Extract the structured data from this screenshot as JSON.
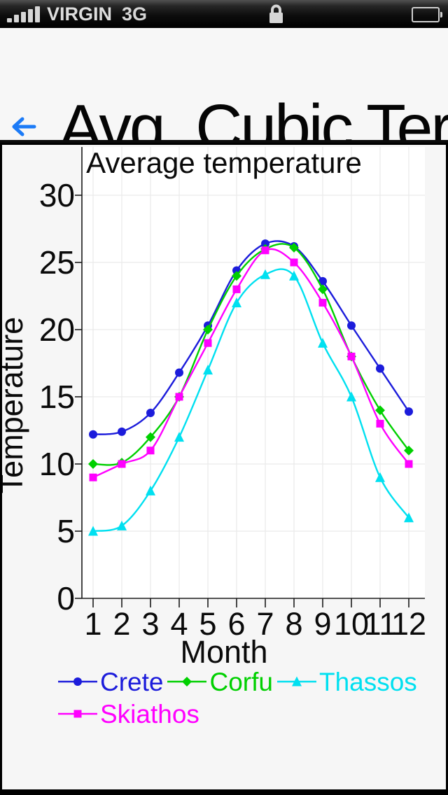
{
  "status_bar": {
    "carrier": "VIRGIN",
    "network": "3G",
    "signal_bars": 5,
    "icons": [
      "signal-strength-icon",
      "lock-icon",
      "battery-icon"
    ]
  },
  "header": {
    "back_label": "back",
    "title": "Avg. Cubic Ter"
  },
  "chart_data": {
    "type": "line",
    "interpolation": "cubic-spline",
    "title": "Average temperature",
    "xlabel": "Month",
    "ylabel": "Temperature",
    "x": [
      1,
      2,
      3,
      4,
      5,
      6,
      7,
      8,
      9,
      10,
      11,
      12
    ],
    "ylim": [
      0,
      30
    ],
    "yticks": [
      0,
      5,
      10,
      15,
      20,
      25,
      30
    ],
    "grid": true,
    "legend_position": "bottom",
    "series": [
      {
        "name": "Crete",
        "color": "#1c1cdb",
        "marker": "circle",
        "values": [
          12.2,
          12.4,
          13.8,
          16.8,
          20.3,
          24.4,
          26.4,
          26.2,
          23.6,
          20.3,
          17.1,
          13.9
        ]
      },
      {
        "name": "Corfu",
        "color": "#00d000",
        "marker": "diamond",
        "values": [
          10.0,
          10.1,
          12.0,
          15.0,
          20.0,
          24.0,
          26.0,
          26.1,
          23.0,
          18.0,
          14.0,
          11.0
        ]
      },
      {
        "name": "Thassos",
        "color": "#00e0f0",
        "marker": "triangle",
        "values": [
          5.0,
          5.4,
          8.0,
          12.0,
          17.0,
          22.0,
          24.1,
          24.0,
          19.0,
          15.0,
          9.0,
          6.0
        ]
      },
      {
        "name": "Skiathos",
        "color": "#ff00ff",
        "marker": "square",
        "values": [
          9.0,
          10.0,
          11.0,
          15.0,
          19.0,
          23.0,
          25.9,
          25.0,
          22.0,
          18.0,
          13.0,
          10.0
        ]
      }
    ]
  }
}
